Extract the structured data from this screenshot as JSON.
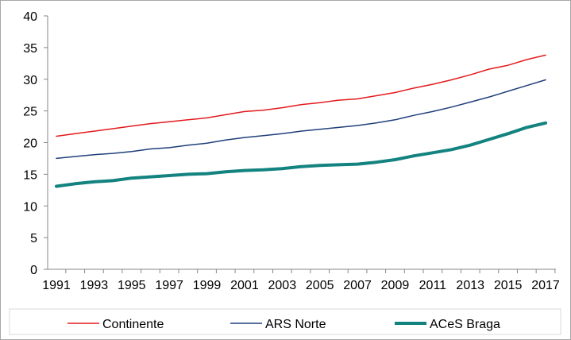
{
  "chart_data": {
    "type": "line",
    "title": "",
    "xlabel": "",
    "ylabel": "",
    "ylim": [
      0,
      40
    ],
    "yticks": [
      0,
      5,
      10,
      15,
      20,
      25,
      30,
      35,
      40
    ],
    "xlim": [
      1991,
      2017
    ],
    "xticks": [
      1991,
      1993,
      1995,
      1997,
      1999,
      2001,
      2003,
      2005,
      2007,
      2009,
      2011,
      2013,
      2015,
      2017
    ],
    "grid": false,
    "legend_position": "bottom",
    "x": [
      1991,
      1992,
      1993,
      1994,
      1995,
      1996,
      1997,
      1998,
      1999,
      2000,
      2001,
      2002,
      2003,
      2004,
      2005,
      2006,
      2007,
      2008,
      2009,
      2010,
      2011,
      2012,
      2013,
      2014,
      2015,
      2016,
      2017
    ],
    "series": [
      {
        "name": "Continente",
        "color": "#e31a1c",
        "values": [
          21.0,
          21.4,
          21.8,
          22.2,
          22.6,
          23.0,
          23.3,
          23.6,
          23.9,
          24.4,
          24.9,
          25.1,
          25.5,
          26.0,
          26.3,
          26.7,
          26.9,
          27.4,
          27.9,
          28.6,
          29.2,
          29.9,
          30.7,
          31.6,
          32.2,
          33.1,
          33.8
        ]
      },
      {
        "name": "ARS Norte",
        "color": "#1f3f7a",
        "values": [
          17.5,
          17.8,
          18.1,
          18.3,
          18.6,
          19.0,
          19.2,
          19.6,
          19.9,
          20.4,
          20.8,
          21.1,
          21.4,
          21.8,
          22.1,
          22.4,
          22.7,
          23.1,
          23.6,
          24.3,
          24.9,
          25.6,
          26.4,
          27.2,
          28.1,
          29.0,
          29.9
        ]
      },
      {
        "name": "ACeS Braga",
        "color": "#138380",
        "values": [
          13.1,
          13.5,
          13.8,
          14.0,
          14.4,
          14.6,
          14.8,
          15.0,
          15.1,
          15.4,
          15.6,
          15.7,
          15.9,
          16.2,
          16.4,
          16.5,
          16.6,
          16.9,
          17.3,
          17.9,
          18.4,
          18.9,
          19.6,
          20.5,
          21.4,
          22.4,
          23.1
        ]
      }
    ]
  }
}
